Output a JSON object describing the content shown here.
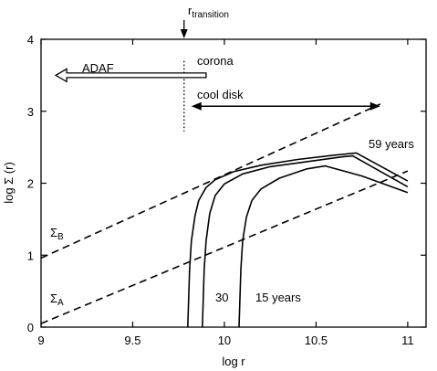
{
  "chart_data": {
    "type": "line",
    "xlabel": "log r",
    "ylabel": "log Σ (r)",
    "xlim": [
      9,
      11.1
    ],
    "ylim": [
      0,
      4
    ],
    "x_ticks": [
      "9",
      "9.5",
      "10",
      "10.5",
      "11"
    ],
    "x_tick_values": [
      9,
      9.5,
      10,
      10.5,
      11
    ],
    "y_ticks": [
      "0",
      "1",
      "2",
      "3",
      "4"
    ],
    "y_tick_values": [
      0,
      1,
      2,
      3,
      4
    ],
    "grid": false,
    "legend": "none",
    "series": [
      {
        "name": "59 years",
        "style": "solid",
        "x": [
          9.8,
          9.81,
          9.82,
          9.84,
          9.86,
          9.9,
          9.95,
          10.05,
          10.2,
          10.4,
          10.6,
          10.72,
          11.0
        ],
        "y": [
          0.0,
          0.8,
          1.2,
          1.55,
          1.76,
          1.94,
          2.05,
          2.16,
          2.25,
          2.33,
          2.39,
          2.42,
          2.03
        ]
      },
      {
        "name": "30",
        "style": "solid",
        "x": [
          9.88,
          9.89,
          9.9,
          9.92,
          9.95,
          10.0,
          10.1,
          10.25,
          10.45,
          10.65,
          10.7,
          11.0
        ],
        "y": [
          0.0,
          0.8,
          1.2,
          1.58,
          1.83,
          1.99,
          2.13,
          2.23,
          2.3,
          2.37,
          2.38,
          1.95
        ]
      },
      {
        "name": "15 years",
        "style": "solid",
        "x": [
          10.08,
          10.09,
          10.1,
          10.12,
          10.15,
          10.2,
          10.3,
          10.45,
          10.55,
          10.75,
          11.0
        ],
        "y": [
          0.0,
          0.8,
          1.2,
          1.53,
          1.76,
          1.92,
          2.07,
          2.2,
          2.24,
          2.1,
          1.87
        ]
      },
      {
        "name": "Σ_B",
        "style": "dashed",
        "x": [
          9.0,
          10.85
        ],
        "y": [
          0.96,
          3.1
        ]
      },
      {
        "name": "Σ_A",
        "style": "dashed",
        "x": [
          9.0,
          11.0
        ],
        "y": [
          0.05,
          2.17
        ]
      }
    ],
    "annotations": {
      "transition": {
        "label": "r",
        "subscript": "transition",
        "x": 9.78
      },
      "corona": {
        "label": "corona"
      },
      "adaf": {
        "label": "ADAF",
        "x_from": 9.9,
        "x_to": 9.08,
        "y": 3.5
      },
      "cool_disk": {
        "label": "cool disk",
        "x_from": 9.82,
        "x_to": 10.85,
        "y": 3.07
      },
      "sigma_b": {
        "label": "Σ",
        "subscript": "B"
      },
      "sigma_a": {
        "label": "Σ",
        "subscript": "A"
      },
      "label_59": "59 years",
      "label_30": "30",
      "label_15": "15 years"
    }
  }
}
